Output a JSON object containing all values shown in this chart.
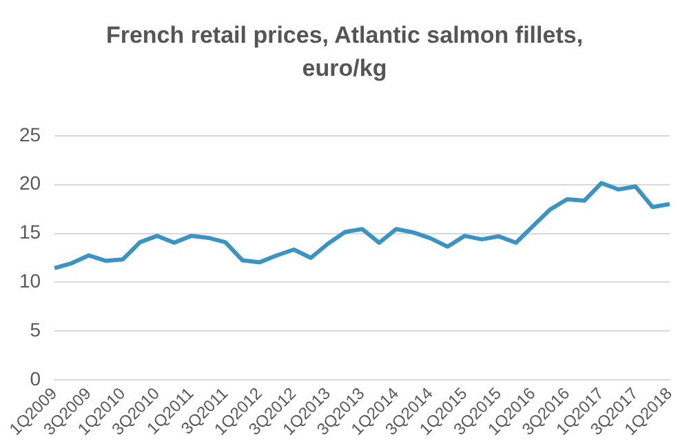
{
  "chart_data": {
    "type": "line",
    "title": "French retail prices, Atlantic salmon fillets, euro/kg",
    "categories": [
      "1Q2009",
      null,
      "3Q2009",
      null,
      "1Q2010",
      null,
      "3Q2010",
      null,
      "1Q2011",
      null,
      "3Q2011",
      null,
      "1Q2012",
      null,
      "3Q2012",
      null,
      "1Q2013",
      null,
      "3Q2013",
      null,
      "1Q2014",
      null,
      "3Q2014",
      null,
      "1Q2015",
      null,
      "3Q2015",
      null,
      "1Q2016",
      null,
      "3Q2016",
      null,
      "1Q2017",
      null,
      "3Q2017",
      null,
      "1Q2018"
    ],
    "series": [
      {
        "color": "#3a93c3",
        "values": [
          11.45,
          11.95,
          12.75,
          12.2,
          12.35,
          14.1,
          14.75,
          14.05,
          14.75,
          14.55,
          14.1,
          12.25,
          12.05,
          12.75,
          13.35,
          12.5,
          13.95,
          15.15,
          15.45,
          14.05,
          15.45,
          15.1,
          14.5,
          13.65,
          14.75,
          14.4,
          14.7,
          14.05,
          15.75,
          17.45,
          18.5,
          18.35,
          20.15,
          19.5,
          19.8,
          17.7,
          18.0
        ]
      }
    ],
    "ylim": [
      0,
      25
    ],
    "yticks": [
      0,
      5,
      10,
      15,
      20,
      25
    ],
    "grid": "y",
    "legend": false,
    "marker": "none",
    "line_style": "solid"
  }
}
